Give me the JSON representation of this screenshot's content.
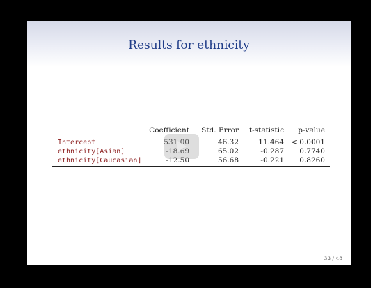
{
  "slide": {
    "title": "Results for ethnicity",
    "page_number": "33 / 48"
  },
  "table": {
    "headers": [
      "Coefficient",
      "Std. Error",
      "t-statistic",
      "p-value"
    ],
    "rows": [
      {
        "label": "Intercept",
        "coefficient": "531.00",
        "std_error": "46.32",
        "t_statistic": "11.464",
        "p_value": "< 0.0001"
      },
      {
        "label": "ethnicity[Asian]",
        "coefficient": "-18.69",
        "std_error": "65.02",
        "t_statistic": "-0.287",
        "p_value": "0.7740"
      },
      {
        "label": "ethnicity[Caucasian]",
        "coefficient": "-12.50",
        "std_error": "56.68",
        "t_statistic": "-0.221",
        "p_value": "0.8260"
      }
    ]
  },
  "overlay": {
    "icon": "play-icon"
  }
}
